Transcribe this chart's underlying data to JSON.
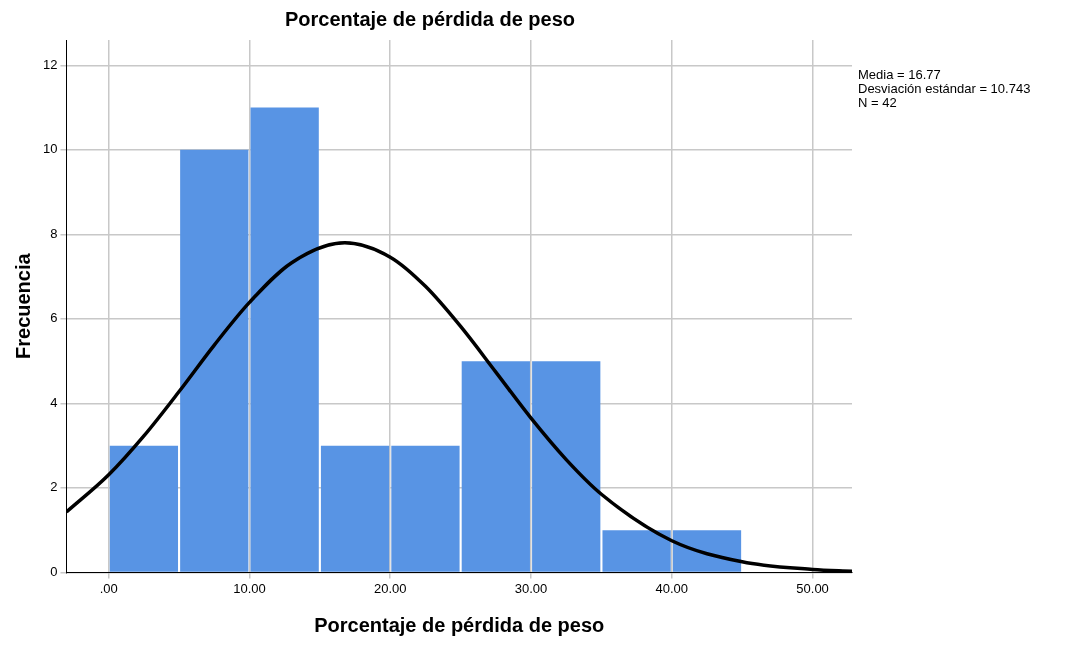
{
  "chart_data": {
    "type": "histogram",
    "title": "Porcentaje de pérdida de peso",
    "xlabel": "Porcentaje de pérdida de peso",
    "ylabel": "Frecuencia",
    "bins": [
      0,
      5,
      10,
      15,
      20,
      25,
      30,
      35,
      40,
      45
    ],
    "values": [
      3,
      10,
      11,
      3,
      3,
      5,
      5,
      1,
      1
    ],
    "color": "#5894e4",
    "series": [
      {
        "type": "line",
        "color": "#000000",
        "x": [
          -3,
          0,
          2.5,
          5,
          7.5,
          10,
          13,
          16.77,
          20,
          22.5,
          25,
          27.5,
          30,
          32.5,
          35,
          40,
          45,
          50,
          52.8
        ],
        "values": [
          1.43,
          2.31,
          3.23,
          4.28,
          5.38,
          6.39,
          7.33,
          7.8,
          7.46,
          6.77,
          5.82,
          4.74,
          3.65,
          2.67,
          1.85,
          0.75,
          0.25,
          0.07,
          0.03
        ]
      }
    ],
    "xlim": [
      -3,
      52.8
    ],
    "xticks": [
      {
        "value": 0,
        "label": ".00"
      },
      {
        "value": 10,
        "label": "10.00"
      },
      {
        "value": 20,
        "label": "20.00"
      },
      {
        "value": 30,
        "label": "30.00"
      },
      {
        "value": 40,
        "label": "40.00"
      },
      {
        "value": 50,
        "label": "50.00"
      }
    ],
    "ylim": [
      0,
      12.6
    ],
    "yticks": [
      0,
      2,
      4,
      6,
      8,
      10,
      12
    ],
    "grid": true,
    "legend": false,
    "annotations": [
      "Media = 16.77",
      "Desviación estándar = 10.743",
      "N = 42"
    ]
  }
}
